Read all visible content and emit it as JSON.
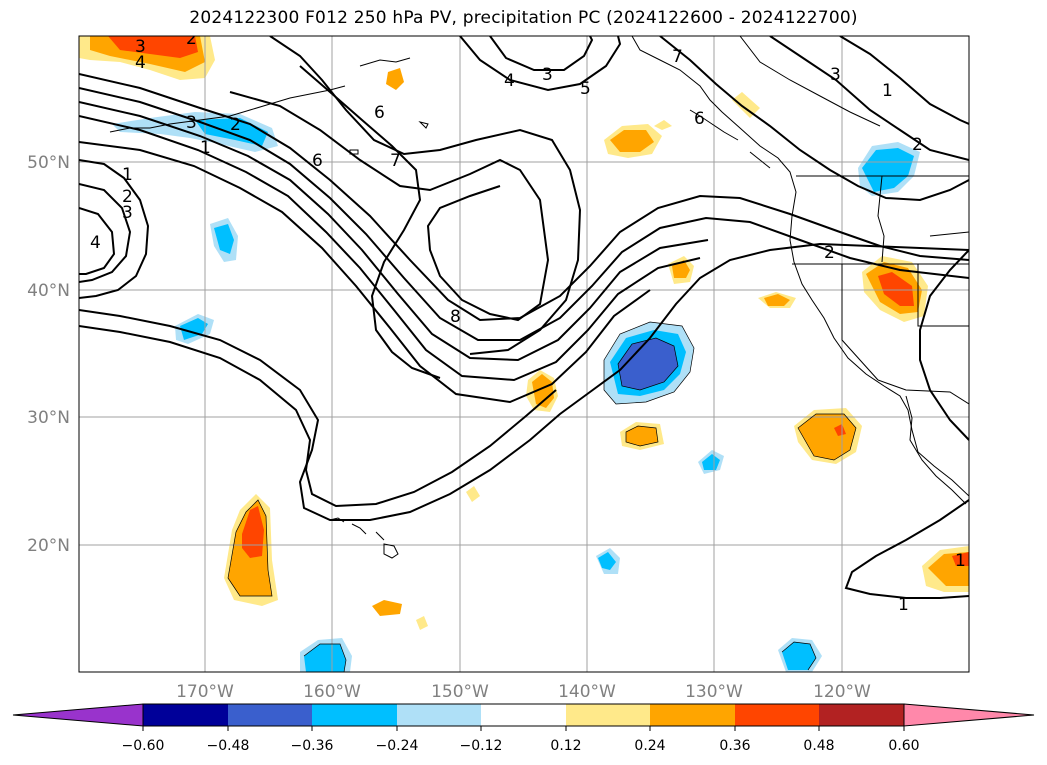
{
  "title": "2024122300 F012 250 hPa PV, precipitation PC (2024122600 - 2024122700)",
  "lat_labels": [
    "50°N",
    "40°N",
    "30°N",
    "20°N"
  ],
  "lon_labels": [
    "170°W",
    "160°W",
    "150°W",
    "140°W",
    "130°W",
    "120°W"
  ],
  "contour_labels": [
    "3",
    "4",
    "2",
    "3",
    "2",
    "1",
    "1",
    "2",
    "3",
    "4",
    "6",
    "6",
    "7",
    "4",
    "3",
    "5",
    "7",
    "3",
    "1",
    "2",
    "6",
    "2",
    "8",
    "1",
    "1"
  ],
  "colorbar": {
    "ticks": [
      "−0.60",
      "−0.48",
      "−0.36",
      "−0.24",
      "−0.12",
      "0.12",
      "0.24",
      "0.36",
      "0.48",
      "0.60"
    ],
    "colors": [
      "#9933cc",
      "#000099",
      "#3a5fcd",
      "#00bfff",
      "#afe0f7",
      "#ffffff",
      "#ffe98a",
      "#ffa500",
      "#ff4500",
      "#b22222",
      "#ff88aa"
    ]
  }
}
